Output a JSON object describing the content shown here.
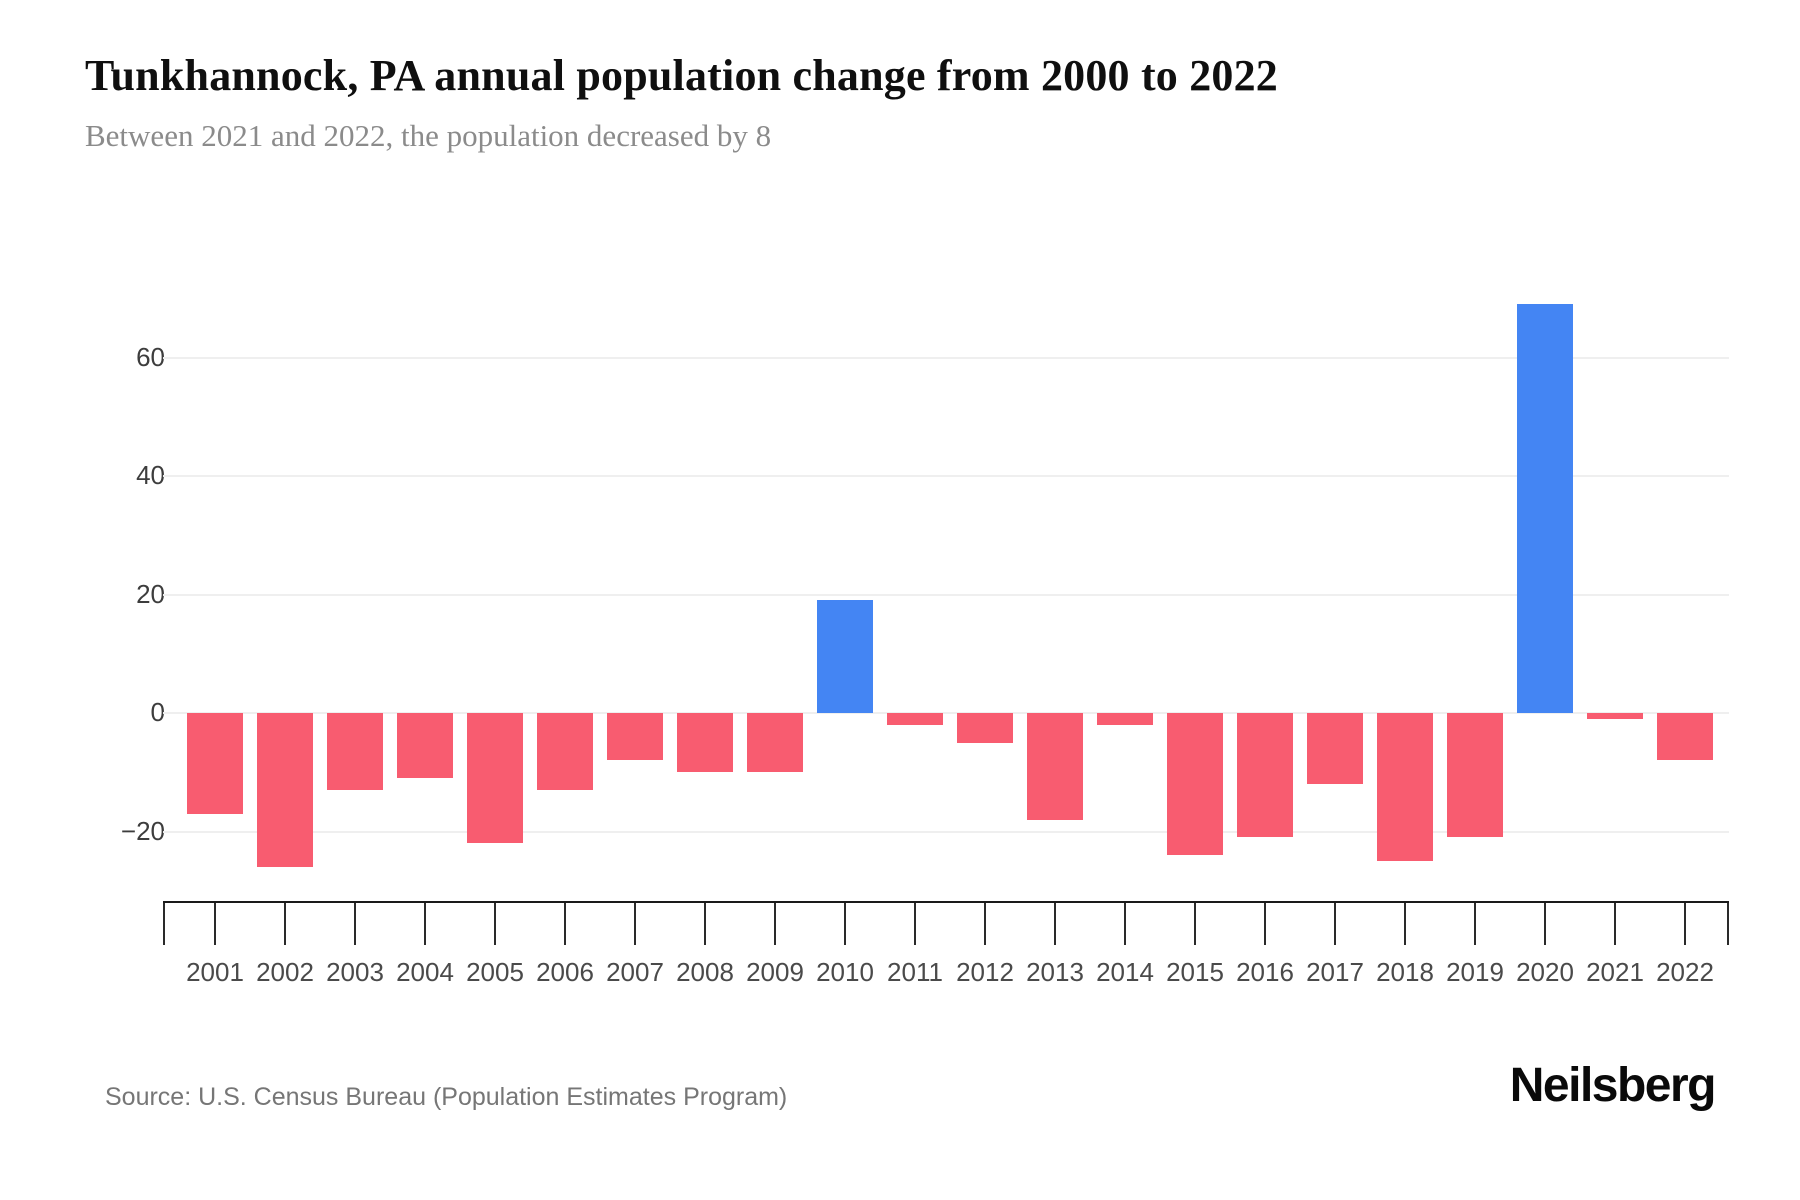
{
  "header": {
    "title": "Tunkhannock, PA annual population change from 2000 to 2022",
    "subtitle": "Between 2021 and 2022, the population decreased by 8"
  },
  "footer": {
    "source": "Source: U.S. Census Bureau (Population Estimates Program)",
    "brand": "Neilsberg"
  },
  "chart_data": {
    "type": "bar",
    "title": "Tunkhannock, PA annual population change from 2000 to 2022",
    "subtitle": "Between 2021 and 2022, the population decreased by 8",
    "categories": [
      "2001",
      "2002",
      "2003",
      "2004",
      "2005",
      "2006",
      "2007",
      "2008",
      "2009",
      "2010",
      "2011",
      "2012",
      "2013",
      "2014",
      "2015",
      "2016",
      "2017",
      "2018",
      "2019",
      "2020",
      "2021",
      "2022"
    ],
    "values": [
      -17,
      -26,
      -13,
      -11,
      -22,
      -13,
      -8,
      -10,
      -10,
      19,
      -2,
      -5,
      -18,
      -2,
      -24,
      -21,
      -12,
      -25,
      -21,
      69,
      -1,
      -8
    ],
    "xlabel": "",
    "ylabel": "",
    "yticks": [
      -20,
      0,
      20,
      40,
      60
    ],
    "ytick_labels": [
      "−20",
      "0",
      "20",
      "40",
      "60"
    ],
    "ylim": [
      -32,
      78
    ],
    "grid": true,
    "legend": false,
    "colors": {
      "positive": "#4485F3",
      "negative": "#F85C70"
    }
  }
}
